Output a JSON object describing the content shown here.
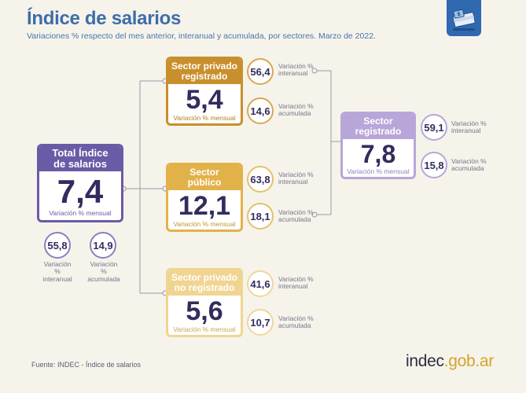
{
  "header": {
    "title": "Índice de salarios",
    "subtitle": "Variaciones % respecto del mes anterior, interanual y acumulada, por sectores. Marzo de 2022."
  },
  "colors": {
    "total": "#6b5aa6",
    "privado_registrado": "#c98f2c",
    "publico": "#e2b24a",
    "no_registrado": "#f0d592",
    "registrado": "#b8a6d9",
    "title": "#3d6dab"
  },
  "icon": "money-stack-icon",
  "total": {
    "title_line1": "Total Índice",
    "title_line2": "de salarios",
    "value": "7,4",
    "caption": "Variación % mensual",
    "interanual": "55,8",
    "acumulada": "14,9",
    "interanual_label1": "Variación %",
    "interanual_label2": "interanual",
    "acumulada_label1": "Variación %",
    "acumulada_label2": "acumulada"
  },
  "privado_registrado": {
    "title_line1": "Sector privado",
    "title_line2": "registrado",
    "value": "5,4",
    "caption": "Variación % mensual",
    "interanual": "56,4",
    "acumulada": "14,6",
    "interanual_label1": "Variación %",
    "interanual_label2": "interanual",
    "acumulada_label1": "Variación %",
    "acumulada_label2": "acumulada"
  },
  "publico": {
    "title_line1": "Sector",
    "title_line2": "público",
    "value": "12,1",
    "caption": "Variación % mensual",
    "interanual": "63,8",
    "acumulada": "18,1",
    "interanual_label1": "Variación %",
    "interanual_label2": "interanual",
    "acumulada_label1": "Variación %",
    "acumulada_label2": "acumulada"
  },
  "no_registrado": {
    "title_line1": "Sector privado",
    "title_line2": "no registrado",
    "value": "5,6",
    "caption": "Variación % mensual",
    "interanual": "41,6",
    "acumulada": "10,7",
    "interanual_label1": "Variación %",
    "interanual_label2": "interanual",
    "acumulada_label1": "Variación %",
    "acumulada_label2": "acumulada"
  },
  "registrado": {
    "title_line1": "Sector",
    "title_line2": "registrado",
    "value": "7,8",
    "caption": "Variación % mensual",
    "interanual": "59,1",
    "acumulada": "15,8",
    "interanual_label1": "Variación %",
    "interanual_label2": "interanual",
    "acumulada_label1": "Variación %",
    "acumulada_label2": "acumulada"
  },
  "footer": {
    "source": "Fuente: INDEC - Índice de salarios",
    "brand_main": "indec",
    "brand_suffix": ".gob.ar"
  }
}
